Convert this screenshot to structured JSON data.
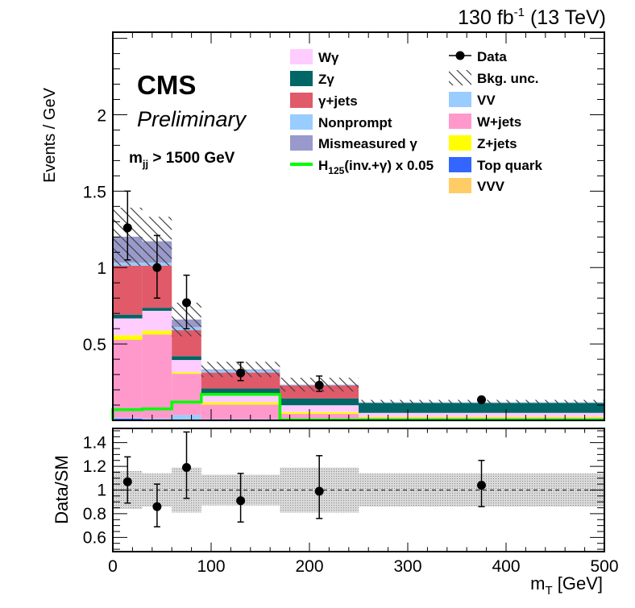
{
  "chart_data": {
    "type": "bar",
    "stacked": true,
    "lumi_label": "130 fb",
    "lumi_sup": "-1",
    "lumi_energy": " (13 TeV)",
    "cms_label": "CMS",
    "preliminary_label": "Preliminary",
    "selection": {
      "var": "m",
      "sub": "jj",
      "cut": " > 1500 GeV"
    },
    "xlabel": {
      "var": "m",
      "sub": "T",
      "unit": " [GeV]"
    },
    "ylabel": "Events / GeV",
    "ratio_ylabel": "Data/SM",
    "xlim": [
      0,
      500
    ],
    "ylim": [
      0,
      2.54
    ],
    "ratio_ylim": [
      0.48,
      1.52
    ],
    "x_ticks": [
      "0",
      "100",
      "200",
      "300",
      "400",
      "500"
    ],
    "y_ticks": [
      {
        "v": 0.5,
        "label": "0.5"
      },
      {
        "v": 1,
        "label": "1"
      },
      {
        "v": 1.5,
        "label": "1.5"
      },
      {
        "v": 2,
        "label": "2"
      }
    ],
    "ratio_y_ticks": [
      {
        "v": 0.6,
        "label": "0.6"
      },
      {
        "v": 0.8,
        "label": "0.8"
      },
      {
        "v": 1.0,
        "label": "1"
      },
      {
        "v": 1.2,
        "label": "1.2"
      },
      {
        "v": 1.4,
        "label": "1.4"
      }
    ],
    "bin_edges": [
      0,
      30,
      60,
      90,
      170,
      250,
      500
    ],
    "series": [
      {
        "name": "VVV",
        "color": "#ffcc66",
        "values": [
          0.002,
          0.002,
          0.002,
          0.001,
          0.001,
          0.001
        ]
      },
      {
        "name": "Top quark",
        "color": "#3366ff",
        "values": [
          0.01,
          0.005,
          0.003,
          0.002,
          0.003,
          0.003
        ]
      },
      {
        "name": "VV",
        "color": "#99ccff",
        "values": [
          0.005,
          0.005,
          0.03,
          0.005,
          0.003,
          0.004
        ]
      },
      {
        "name": "W+jets",
        "color": "#ff99cc",
        "values": [
          0.51,
          0.55,
          0.27,
          0.095,
          0.035,
          0.01
        ]
      },
      {
        "name": "Z+jets",
        "color": "#ffff00",
        "values": [
          0.03,
          0.025,
          0.01,
          0.015,
          0.012,
          0.006
        ]
      },
      {
        "name": "Wγ",
        "color": "#ffccff",
        "values": [
          0.11,
          0.13,
          0.08,
          0.06,
          0.045,
          0.025
        ]
      },
      {
        "name": "Zγ",
        "color": "#006666",
        "values": [
          0.025,
          0.02,
          0.025,
          0.03,
          0.045,
          0.065
        ]
      },
      {
        "name": "γ+jets",
        "color": "#e05a6a",
        "values": [
          0.32,
          0.275,
          0.17,
          0.105,
          0.085,
          0.0
        ]
      },
      {
        "name": "Nonprompt",
        "color": "#99ccff",
        "values": [
          0.02,
          0.02,
          0.02,
          0.015,
          0.005,
          0.005
        ]
      },
      {
        "name": "Mismeasured γ",
        "color": "#9999cc",
        "values": [
          0.17,
          0.14,
          0.05,
          0.005,
          0.0,
          0.0
        ]
      }
    ],
    "bkg_unc": {
      "name": "Bkg. unc.",
      "values": [
        0.19,
        0.16,
        0.11,
        0.05,
        0.045,
        0.015
      ]
    },
    "signal": {
      "name_main": "H",
      "name_sub": "125",
      "name_rest": "(inv.+γ) x 0.05",
      "color": "#00ff00",
      "values": [
        0.07,
        0.075,
        0.12,
        0.17,
        0.003,
        0.003
      ]
    },
    "data": {
      "name": "Data",
      "x": [
        15,
        45,
        75,
        130,
        210,
        375
      ],
      "values": [
        1.26,
        1.0,
        0.77,
        0.31,
        0.23,
        0.135
      ],
      "err_up": [
        0.24,
        0.21,
        0.18,
        0.07,
        0.06,
        0.012
      ],
      "err_down": [
        0.21,
        0.2,
        0.17,
        0.05,
        0.04,
        0.01
      ]
    },
    "ratio": {
      "values": [
        1.07,
        0.86,
        1.19,
        0.91,
        0.99,
        1.04
      ],
      "err_up": [
        0.21,
        0.19,
        0.3,
        0.23,
        0.3,
        0.21
      ],
      "err_down": [
        0.18,
        0.17,
        0.26,
        0.18,
        0.23,
        0.18
      ],
      "unc_band": [
        0.16,
        0.14,
        0.19,
        0.13,
        0.19,
        0.14
      ]
    },
    "legend": {
      "left": [
        "Wγ",
        "Zγ",
        "γ+jets",
        "Nonprompt",
        "Mismeasured γ"
      ],
      "right": [
        "Data",
        "Bkg. unc.",
        "VV",
        "W+jets",
        "Z+jets",
        "Top quark",
        "VVV"
      ]
    }
  }
}
